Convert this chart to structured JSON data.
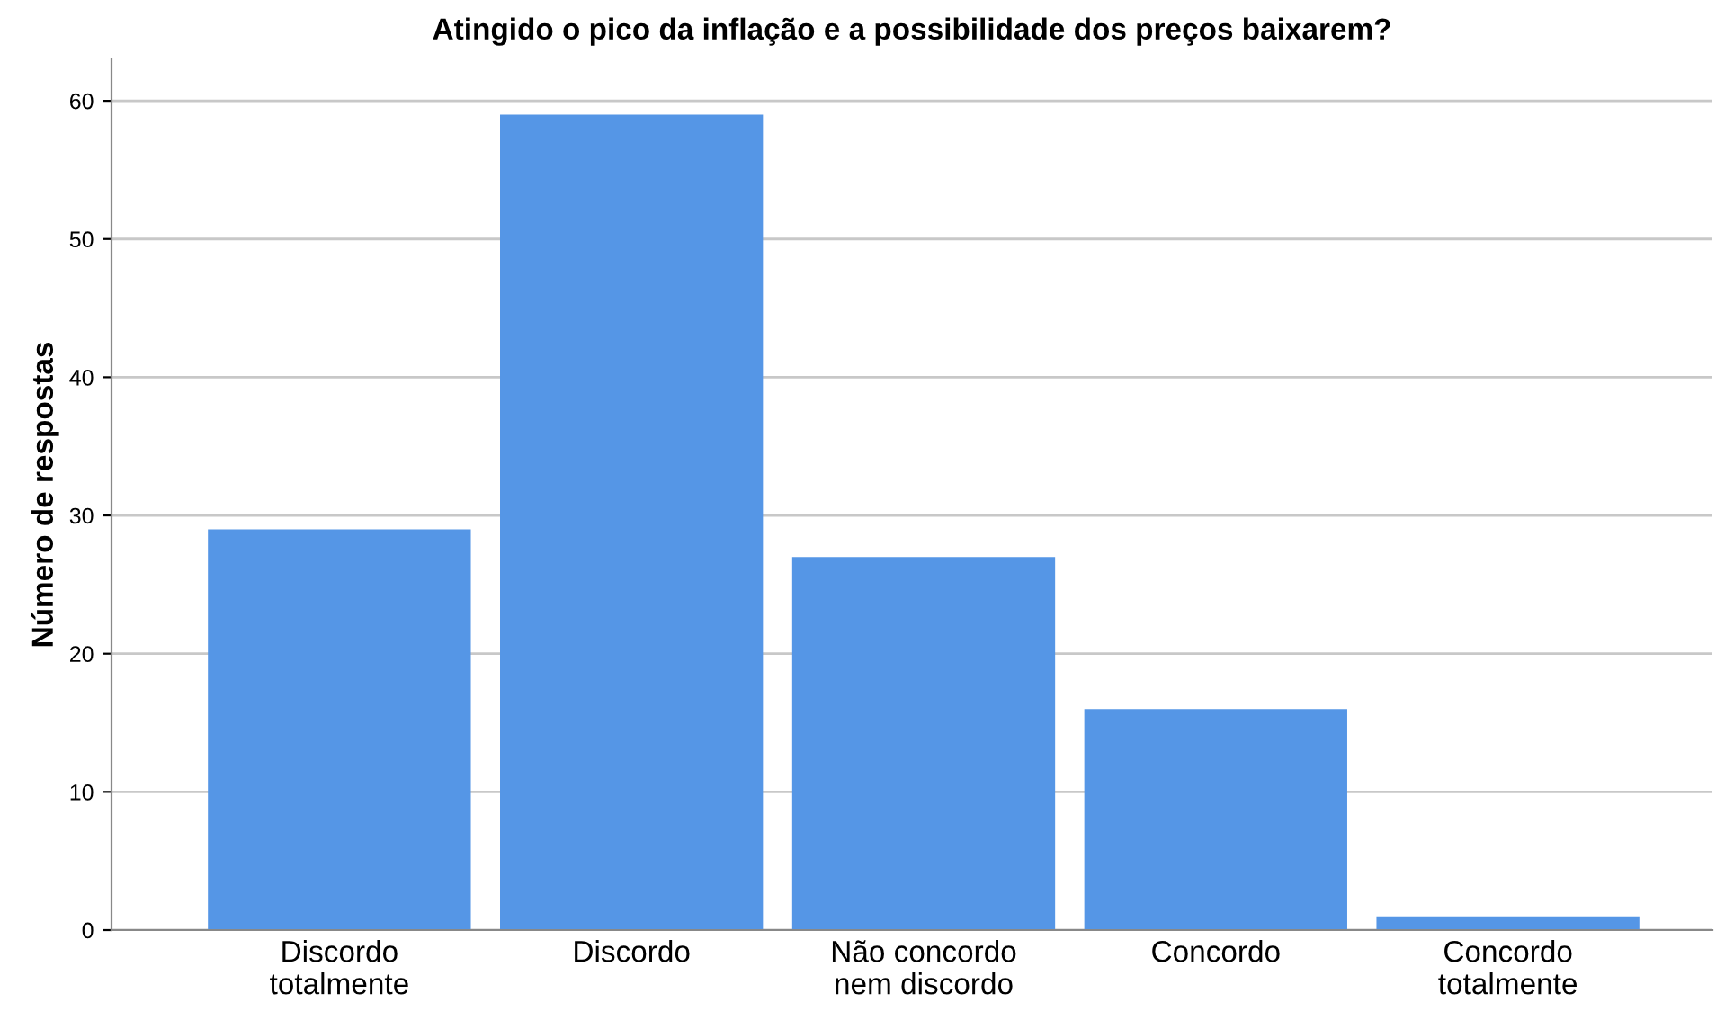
{
  "chart_data": {
    "type": "bar",
    "title": "Atingido o pico da inflação e a possibilidade dos preços baixarem?",
    "ylabel": "Número de respostas",
    "categories": [
      "Discordo\ntotalmente",
      "Discordo",
      "Não concordo\nnem discordo",
      "Concordo",
      "Concordo\ntotalmente"
    ],
    "values": [
      29,
      59,
      27,
      16,
      1
    ],
    "color": "#5596e6",
    "ylim": [
      0,
      63
    ],
    "yticks": [
      0,
      10,
      20,
      30,
      40,
      50,
      60
    ],
    "grid": "y"
  }
}
